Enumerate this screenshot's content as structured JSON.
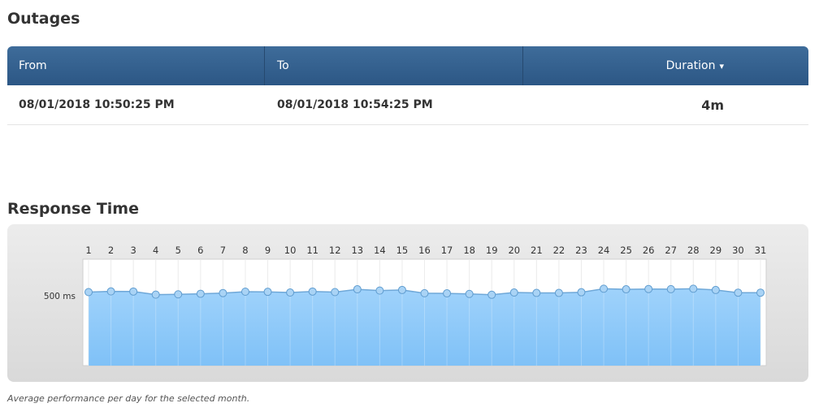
{
  "outages": {
    "title": "Outages",
    "columns": {
      "from": "From",
      "to": "To",
      "duration": "Duration",
      "sort_indicator": "▾"
    },
    "rows": [
      {
        "from": "08/01/2018 10:50:25 PM",
        "to": "08/01/2018 10:54:25 PM",
        "duration": "4m"
      }
    ],
    "header_color": "#2f5b89"
  },
  "response_time": {
    "title": "Response Time",
    "caption": "Average performance per day for the selected month."
  },
  "chart_data": {
    "type": "area",
    "title": "",
    "xlabel": "",
    "ylabel": "",
    "x": [
      1,
      2,
      3,
      4,
      5,
      6,
      7,
      8,
      9,
      10,
      11,
      12,
      13,
      14,
      15,
      16,
      17,
      18,
      19,
      20,
      21,
      22,
      23,
      24,
      25,
      26,
      27,
      28,
      29,
      30,
      31
    ],
    "values": [
      525,
      530,
      529,
      507,
      509,
      513,
      518,
      528,
      527,
      522,
      529,
      525,
      545,
      536,
      540,
      517,
      516,
      512,
      506,
      522,
      519,
      519,
      524,
      549,
      545,
      547,
      546,
      549,
      540,
      521,
      521
    ],
    "ytick_labels": [
      "500 ms"
    ],
    "ytick_values": [
      500
    ],
    "ylim": [
      0,
      760
    ],
    "grid": true,
    "fill_color": "#7fc1f7",
    "line_color": "#6fa8d8",
    "marker_color": "#a9d3f5"
  }
}
